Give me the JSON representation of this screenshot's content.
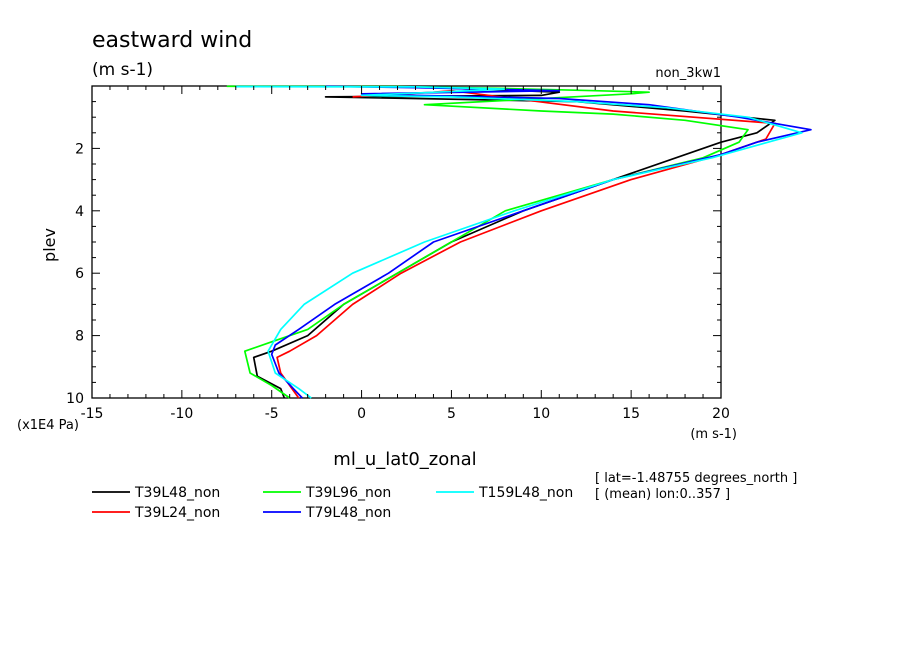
{
  "chart_data": {
    "type": "line",
    "title": "eastward wind",
    "subtitle": "(m s-1)",
    "experiment": "non_3kw1",
    "xlabel": "ml_u_lat0_zonal",
    "xunits": "(m s-1)",
    "ylabel": "plev",
    "yunits": "(x1E4 Pa)",
    "xlim": [
      -15,
      20
    ],
    "ylim": [
      10,
      0.01
    ],
    "x_ticks": [
      -15,
      -10,
      -5,
      0,
      5,
      10,
      15,
      20
    ],
    "x_tick_labels": [
      "-15",
      "-10",
      "-5",
      "0",
      "5",
      "10",
      "15",
      "20"
    ],
    "y_ticks": [
      2,
      4,
      6,
      8,
      10
    ],
    "y_tick_labels": [
      "2",
      "4",
      "6",
      "8",
      "10"
    ],
    "info_lines": [
      "[ lat=-1.48755 degrees_north ]",
      "[ (mean) lon:0..357 ]"
    ],
    "legend_position": "bottom",
    "series": [
      {
        "name": "T39L48_non",
        "color": "#000000",
        "x": [
          4,
          11,
          10,
          -2,
          3,
          12,
          18,
          23,
          22,
          20,
          14,
          9,
          5,
          2,
          -1,
          -3,
          -5,
          -6,
          -5.8,
          -4.5,
          -4.3
        ],
        "y": [
          0.05,
          0.2,
          0.3,
          0.35,
          0.4,
          0.5,
          0.8,
          1.1,
          1.5,
          1.8,
          3,
          4,
          5,
          6,
          7,
          8,
          8.5,
          8.7,
          9.3,
          9.7,
          10
        ]
      },
      {
        "name": "T39L24_non",
        "color": "#ff0000",
        "x": [
          -0.5,
          4,
          5,
          14,
          23,
          22.5,
          20,
          15,
          10,
          5.5,
          2.2,
          -0.5,
          -2.5,
          -4,
          -4.7,
          -4.5,
          -3.5
        ],
        "y": [
          0.35,
          0.2,
          0.15,
          0.8,
          1.2,
          1.7,
          2.2,
          3,
          4,
          5,
          6,
          7,
          8,
          8.5,
          8.7,
          9.2,
          10
        ]
      },
      {
        "name": "T39L96_non",
        "color": "#00ff00",
        "x": [
          -7.5,
          2,
          8,
          13,
          16,
          15,
          3.5,
          10,
          14,
          18,
          21.5,
          21,
          19,
          14,
          8,
          5,
          2,
          -1,
          -3,
          -5,
          -6.5,
          -6.2,
          -5,
          -4
        ],
        "y": [
          0.01,
          0.02,
          0.08,
          0.15,
          0.2,
          0.25,
          0.6,
          0.8,
          0.9,
          1.1,
          1.4,
          1.8,
          2.3,
          3,
          4,
          5,
          6,
          7,
          7.8,
          8.2,
          8.5,
          9.2,
          9.6,
          10
        ]
      },
      {
        "name": "T79L48_non",
        "color": "#0000ff",
        "x": [
          -2,
          3,
          11,
          0,
          3,
          11,
          16,
          21,
          25,
          22,
          20,
          14,
          9,
          4,
          1.5,
          -1.5,
          -3.5,
          -4.8,
          -5,
          -4.6,
          -3.8,
          -3.3
        ],
        "y": [
          0.01,
          0.05,
          0.15,
          0.25,
          0.3,
          0.4,
          0.6,
          1,
          1.4,
          1.8,
          2.2,
          3,
          4,
          5,
          6,
          7,
          7.8,
          8.3,
          8.6,
          9.2,
          9.7,
          10
        ]
      },
      {
        "name": "T159L48_non",
        "color": "#00ffff",
        "x": [
          -7,
          3,
          8,
          0,
          5,
          12,
          17,
          21.5,
          24.5,
          22,
          19.5,
          14,
          8.5,
          3.5,
          -0.5,
          -3.2,
          -4.5,
          -5.2,
          -4.8,
          -3.5,
          -2.8
        ],
        "y": [
          0.02,
          0.03,
          0.1,
          0.3,
          0.35,
          0.5,
          0.7,
          1,
          1.5,
          1.9,
          2.3,
          3,
          4,
          5,
          6,
          7,
          7.8,
          8.5,
          9.2,
          9.7,
          10
        ]
      }
    ]
  }
}
